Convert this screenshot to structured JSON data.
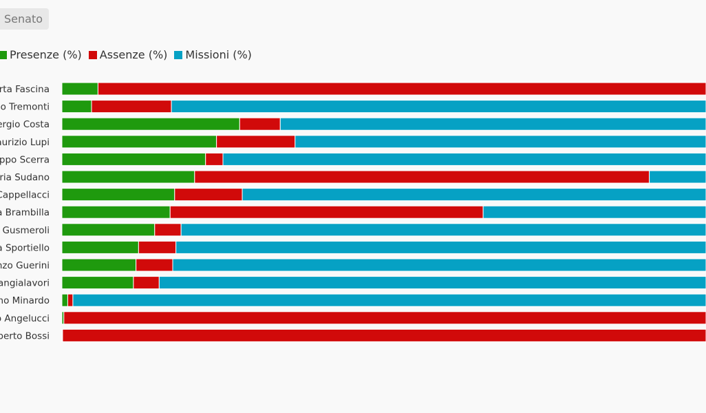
{
  "tab": {
    "label": "Senato"
  },
  "colors": {
    "presenze": "#1f9a0e",
    "assenze": "#d10a0a",
    "missioni": "#06a1c4"
  },
  "chart_data": {
    "type": "bar",
    "orientation": "horizontal",
    "stacked": "percent",
    "legend_position": "top-left",
    "grid": false,
    "categories": [
      "rta Fascina",
      "io Tremonti",
      "ergio Costa",
      "aurizio Lupi",
      "ippo Scerra",
      "eria Sudano",
      "Cappellacci",
      "a Brambilla",
      "o Gusmeroli",
      "a Sportiello",
      "nzo Guerini",
      "angialavori",
      "no Minardo",
      "o Angelucci",
      "berto Bossi"
    ],
    "series": [
      {
        "name": "Presenze (%)",
        "color": "#1f9a0e",
        "values": [
          5.6,
          4.6,
          27.6,
          24.0,
          22.3,
          20.6,
          17.5,
          16.8,
          14.4,
          11.9,
          11.5,
          11.1,
          0.9,
          0.3,
          0.1
        ]
      },
      {
        "name": "Assenze (%)",
        "color": "#d10a0a",
        "values": [
          94.4,
          12.4,
          6.3,
          12.2,
          2.7,
          70.6,
          10.5,
          48.6,
          4.1,
          5.8,
          5.7,
          4.0,
          0.8,
          99.7,
          99.9
        ]
      },
      {
        "name": "Missioni (%)",
        "color": "#06a1c4",
        "values": [
          0,
          83.0,
          66.1,
          63.8,
          75.0,
          8.8,
          72.0,
          34.6,
          81.5,
          82.3,
          82.8,
          84.9,
          98.3,
          0,
          0
        ]
      }
    ],
    "xlim": [
      0,
      100
    ]
  }
}
